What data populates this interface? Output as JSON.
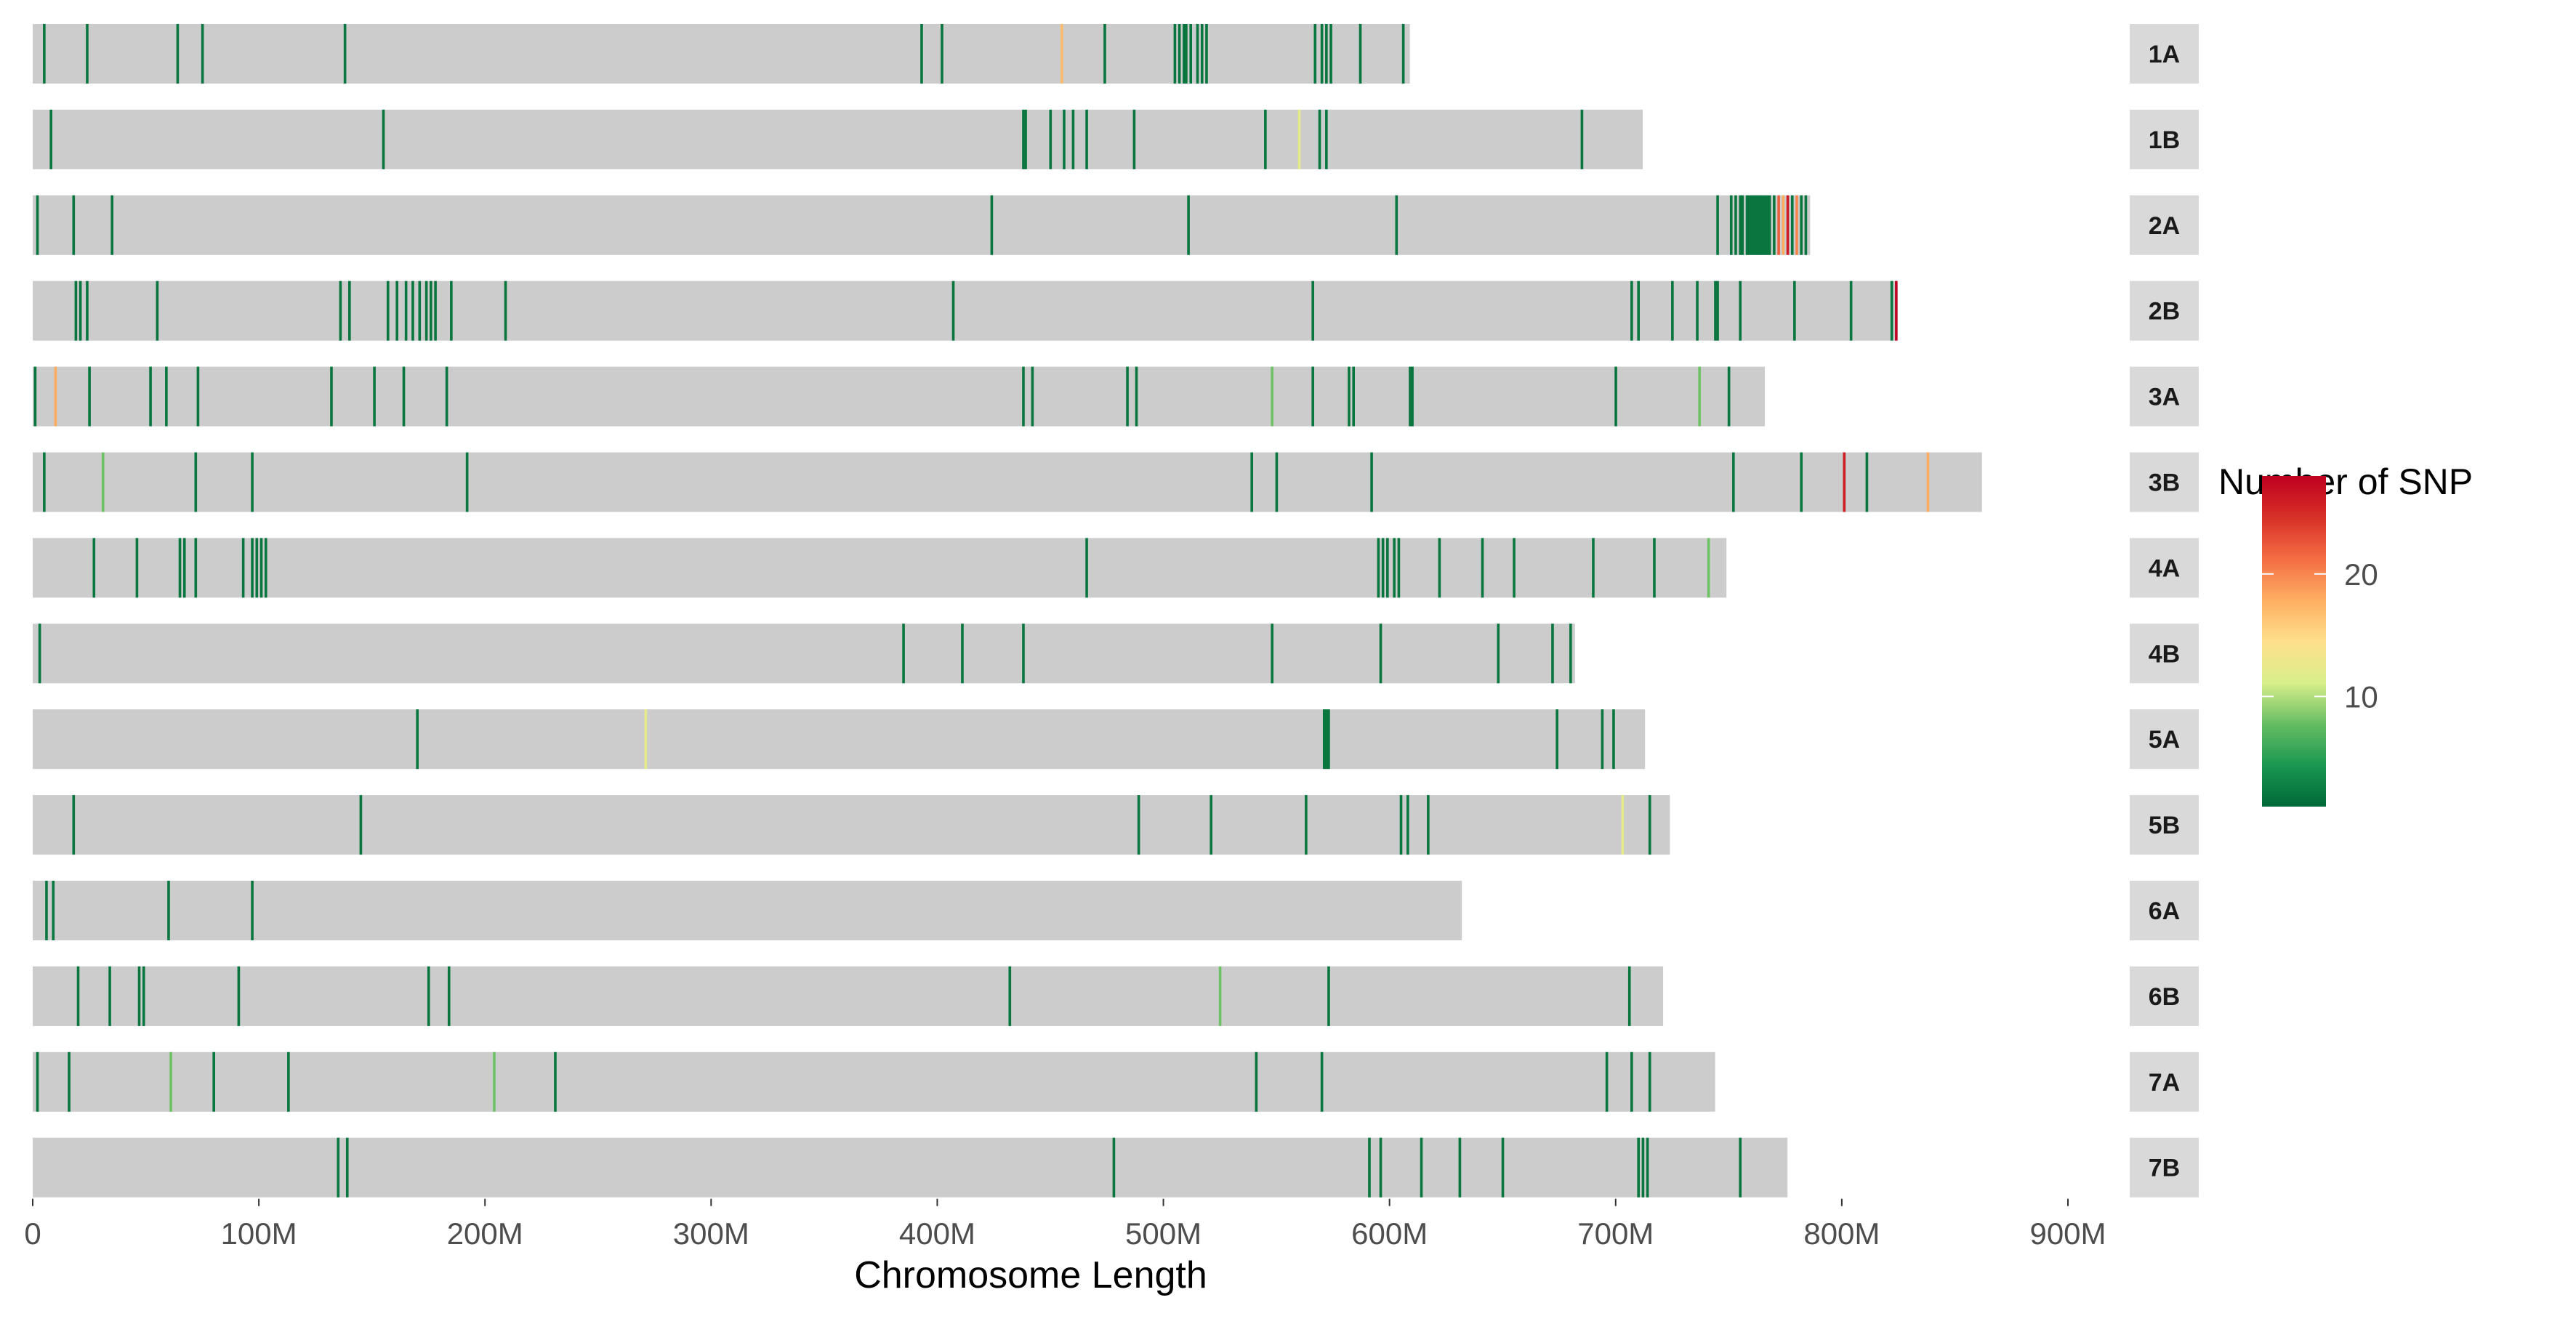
{
  "chart_data": {
    "type": "heatmap",
    "title": "",
    "xlabel": "Chromosome Length",
    "ylabel": "",
    "xlim": [
      0,
      900
    ],
    "x_unit": "Mb",
    "x_ticks": [
      0,
      100,
      200,
      300,
      400,
      500,
      600,
      700,
      800,
      900
    ],
    "x_tick_labels": [
      "0",
      "100M",
      "200M",
      "300M",
      "400M",
      "500M",
      "600M",
      "700M",
      "800M",
      "900M"
    ],
    "legend": {
      "title": "Number of SNP",
      "min": 1,
      "max": 28,
      "ticks": [
        10,
        20
      ],
      "tick_labels": [
        "10",
        "20"
      ],
      "colors": [
        "#006837",
        "#1a9850",
        "#66bd63",
        "#d9ef8b",
        "#fee08b",
        "#fdae61",
        "#f46d43",
        "#d73027",
        "#c00020"
      ]
    },
    "background_color": "#cccccc",
    "chromosomes": [
      {
        "name": "1A",
        "length": 609,
        "snps": [
          [
            5,
            2
          ],
          [
            24,
            2
          ],
          [
            64,
            2
          ],
          [
            75,
            2
          ],
          [
            138,
            2
          ],
          [
            393,
            2
          ],
          [
            402,
            2
          ],
          [
            455,
            17
          ],
          [
            474,
            2
          ],
          [
            505,
            2
          ],
          [
            507,
            2
          ],
          [
            509,
            2
          ],
          [
            510,
            2
          ],
          [
            512,
            2
          ],
          [
            515,
            2
          ],
          [
            517,
            2
          ],
          [
            519,
            2
          ],
          [
            567,
            2
          ],
          [
            570,
            2
          ],
          [
            572,
            2
          ],
          [
            574,
            2
          ],
          [
            587,
            2
          ],
          [
            606,
            2
          ]
        ]
      },
      {
        "name": "1B",
        "length": 712,
        "snps": [
          [
            8,
            2
          ],
          [
            155,
            2
          ],
          [
            438,
            2
          ],
          [
            439,
            2
          ],
          [
            450,
            2
          ],
          [
            456,
            2
          ],
          [
            460,
            2
          ],
          [
            466,
            2
          ],
          [
            487,
            2
          ],
          [
            545,
            2
          ],
          [
            560,
            12
          ],
          [
            569,
            2
          ],
          [
            572,
            2
          ],
          [
            685,
            2
          ]
        ]
      },
      {
        "name": "2A",
        "length": 786,
        "snps": [
          [
            2,
            2
          ],
          [
            18,
            2
          ],
          [
            35,
            2
          ],
          [
            424,
            2
          ],
          [
            511,
            2
          ],
          [
            603,
            2
          ],
          [
            745,
            2
          ],
          [
            751,
            2
          ],
          [
            753,
            2
          ],
          [
            755,
            2
          ],
          [
            756,
            2
          ],
          [
            758,
            2
          ],
          [
            759,
            2
          ],
          [
            760,
            2
          ],
          [
            761,
            2
          ],
          [
            762,
            2
          ],
          [
            763,
            2
          ],
          [
            764,
            2
          ],
          [
            765,
            2
          ],
          [
            766,
            2
          ],
          [
            767,
            2
          ],
          [
            768,
            2
          ],
          [
            770,
            2
          ],
          [
            772,
            22
          ],
          [
            774,
            18
          ],
          [
            776,
            26
          ],
          [
            778,
            2
          ],
          [
            780,
            20
          ],
          [
            782,
            2
          ],
          [
            784,
            2
          ]
        ]
      },
      {
        "name": "2B",
        "length": 824,
        "snps": [
          [
            19,
            2
          ],
          [
            21,
            2
          ],
          [
            24,
            2
          ],
          [
            55,
            2
          ],
          [
            136,
            2
          ],
          [
            140,
            2
          ],
          [
            157,
            2
          ],
          [
            161,
            2
          ],
          [
            165,
            2
          ],
          [
            168,
            2
          ],
          [
            171,
            2
          ],
          [
            174,
            2
          ],
          [
            176,
            2
          ],
          [
            178,
            2
          ],
          [
            185,
            2
          ],
          [
            209,
            2
          ],
          [
            407,
            2
          ],
          [
            566,
            2
          ],
          [
            707,
            2
          ],
          [
            710,
            2
          ],
          [
            725,
            2
          ],
          [
            736,
            2
          ],
          [
            744,
            2
          ],
          [
            745,
            2
          ],
          [
            755,
            2
          ],
          [
            779,
            2
          ],
          [
            804,
            2
          ],
          [
            822,
            2
          ],
          [
            824,
            28
          ]
        ]
      },
      {
        "name": "3A",
        "length": 766,
        "snps": [
          [
            1,
            2
          ],
          [
            10,
            18
          ],
          [
            25,
            2
          ],
          [
            52,
            2
          ],
          [
            59,
            2
          ],
          [
            73,
            2
          ],
          [
            132,
            2
          ],
          [
            151,
            2
          ],
          [
            164,
            2
          ],
          [
            183,
            2
          ],
          [
            438,
            2
          ],
          [
            442,
            2
          ],
          [
            484,
            2
          ],
          [
            488,
            2
          ],
          [
            548,
            8
          ],
          [
            566,
            2
          ],
          [
            582,
            2
          ],
          [
            584,
            2
          ],
          [
            609,
            2
          ],
          [
            610,
            2
          ],
          [
            700,
            2
          ],
          [
            737,
            8
          ],
          [
            750,
            2
          ]
        ]
      },
      {
        "name": "3B",
        "length": 862,
        "snps": [
          [
            5,
            2
          ],
          [
            31,
            8
          ],
          [
            72,
            2
          ],
          [
            97,
            2
          ],
          [
            192,
            2
          ],
          [
            539,
            2
          ],
          [
            550,
            2
          ],
          [
            592,
            2
          ],
          [
            752,
            2
          ],
          [
            782,
            2
          ],
          [
            801,
            26
          ],
          [
            811,
            2
          ],
          [
            838,
            18
          ]
        ]
      },
      {
        "name": "4A",
        "length": 749,
        "snps": [
          [
            27,
            2
          ],
          [
            46,
            2
          ],
          [
            65,
            2
          ],
          [
            67,
            2
          ],
          [
            72,
            2
          ],
          [
            93,
            2
          ],
          [
            97,
            2
          ],
          [
            99,
            2
          ],
          [
            101,
            2
          ],
          [
            103,
            2
          ],
          [
            466,
            2
          ],
          [
            595,
            2
          ],
          [
            597,
            2
          ],
          [
            599,
            2
          ],
          [
            602,
            2
          ],
          [
            604,
            2
          ],
          [
            622,
            2
          ],
          [
            641,
            2
          ],
          [
            655,
            2
          ],
          [
            690,
            2
          ],
          [
            717,
            2
          ],
          [
            741,
            8
          ]
        ]
      },
      {
        "name": "4B",
        "length": 682,
        "snps": [
          [
            3,
            2
          ],
          [
            385,
            2
          ],
          [
            411,
            2
          ],
          [
            438,
            2
          ],
          [
            548,
            2
          ],
          [
            596,
            2
          ],
          [
            648,
            2
          ],
          [
            672,
            2
          ],
          [
            680,
            2
          ]
        ]
      },
      {
        "name": "5A",
        "length": 713,
        "snps": [
          [
            170,
            2
          ],
          [
            271,
            12
          ],
          [
            571,
            2
          ],
          [
            572,
            2
          ],
          [
            573,
            2
          ],
          [
            674,
            2
          ],
          [
            694,
            2
          ],
          [
            699,
            2
          ]
        ]
      },
      {
        "name": "5B",
        "length": 724,
        "snps": [
          [
            18,
            2
          ],
          [
            145,
            2
          ],
          [
            489,
            2
          ],
          [
            521,
            2
          ],
          [
            563,
            2
          ],
          [
            605,
            2
          ],
          [
            608,
            2
          ],
          [
            617,
            2
          ],
          [
            703,
            12
          ],
          [
            715,
            2
          ]
        ]
      },
      {
        "name": "6A",
        "length": 632,
        "snps": [
          [
            6,
            2
          ],
          [
            9,
            2
          ],
          [
            60,
            2
          ],
          [
            97,
            2
          ]
        ]
      },
      {
        "name": "6B",
        "length": 721,
        "snps": [
          [
            20,
            2
          ],
          [
            34,
            2
          ],
          [
            47,
            2
          ],
          [
            49,
            2
          ],
          [
            91,
            2
          ],
          [
            175,
            2
          ],
          [
            184,
            2
          ],
          [
            432,
            2
          ],
          [
            525,
            8
          ],
          [
            573,
            2
          ],
          [
            706,
            2
          ]
        ]
      },
      {
        "name": "7A",
        "length": 744,
        "snps": [
          [
            2,
            2
          ],
          [
            16,
            2
          ],
          [
            61,
            8
          ],
          [
            80,
            2
          ],
          [
            113,
            2
          ],
          [
            204,
            8
          ],
          [
            231,
            2
          ],
          [
            541,
            2
          ],
          [
            570,
            2
          ],
          [
            696,
            2
          ],
          [
            707,
            2
          ],
          [
            715,
            2
          ]
        ]
      },
      {
        "name": "7B",
        "length": 776,
        "snps": [
          [
            135,
            2
          ],
          [
            139,
            2
          ],
          [
            478,
            2
          ],
          [
            591,
            2
          ],
          [
            596,
            2
          ],
          [
            614,
            2
          ],
          [
            631,
            2
          ],
          [
            650,
            2
          ],
          [
            710,
            2
          ],
          [
            712,
            2
          ],
          [
            714,
            2
          ],
          [
            755,
            2
          ]
        ]
      }
    ]
  }
}
